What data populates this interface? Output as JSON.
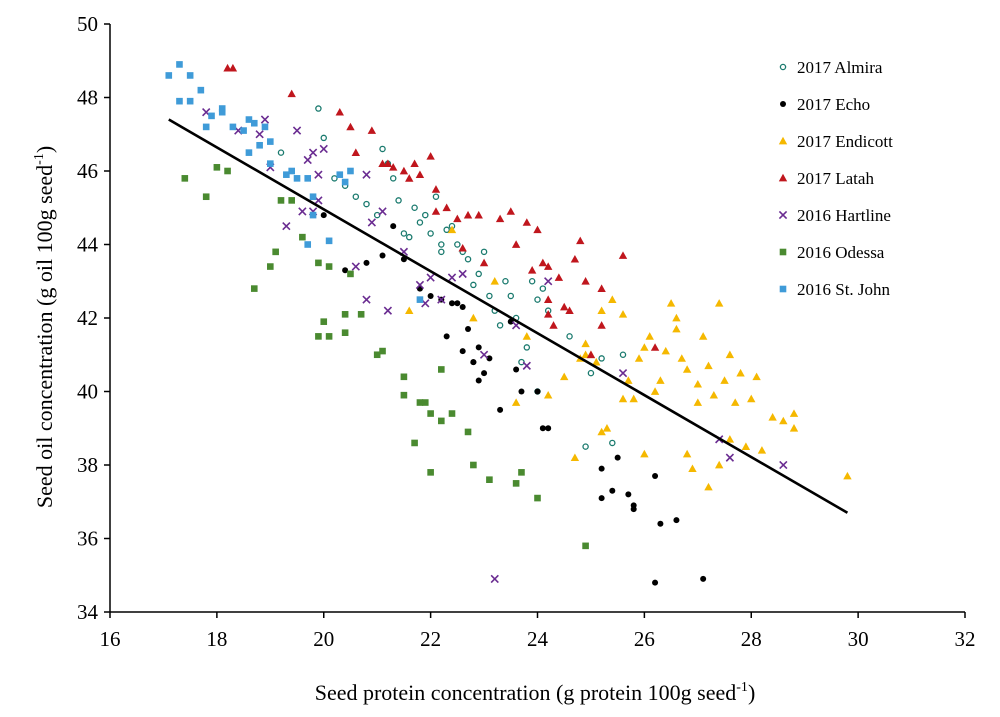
{
  "chart_data": {
    "type": "scatter",
    "xlabel": {
      "main": "Seed protein concentration  (g protein 100g seed",
      "sup": "-1",
      "end": ")"
    },
    "ylabel": {
      "main": "Seed oil concentration  (g oil 100g seed",
      "sup": "-1",
      "end": ")"
    },
    "xlim": [
      16,
      32
    ],
    "ylim": [
      34,
      50
    ],
    "xticks": [
      16,
      18,
      20,
      22,
      24,
      26,
      28,
      30,
      32
    ],
    "yticks": [
      34,
      36,
      38,
      40,
      42,
      44,
      46,
      48,
      50
    ],
    "grid": false,
    "legend_position": "top-right",
    "trendline": {
      "x": [
        17.1,
        29.8
      ],
      "y": [
        47.4,
        36.7
      ],
      "color": "#000000"
    },
    "series": [
      {
        "name": "2017 Almira",
        "marker": "open-circle",
        "color": "#1a7a6e",
        "points": [
          [
            19.2,
            46.5
          ],
          [
            19.9,
            47.7
          ],
          [
            20.0,
            46.9
          ],
          [
            20.2,
            45.8
          ],
          [
            20.4,
            45.6
          ],
          [
            20.6,
            45.3
          ],
          [
            20.8,
            45.1
          ],
          [
            21.0,
            44.8
          ],
          [
            21.1,
            46.6
          ],
          [
            21.2,
            46.2
          ],
          [
            21.3,
            45.8
          ],
          [
            21.4,
            45.2
          ],
          [
            21.6,
            44.2
          ],
          [
            21.7,
            45.0
          ],
          [
            21.8,
            44.6
          ],
          [
            21.9,
            44.8
          ],
          [
            22.0,
            44.3
          ],
          [
            22.1,
            45.3
          ],
          [
            22.2,
            44.0
          ],
          [
            22.3,
            44.4
          ],
          [
            22.4,
            44.5
          ],
          [
            22.5,
            44.0
          ],
          [
            22.6,
            43.8
          ],
          [
            22.7,
            43.6
          ],
          [
            22.9,
            43.2
          ],
          [
            23.0,
            43.8
          ],
          [
            23.1,
            42.6
          ],
          [
            23.2,
            42.2
          ],
          [
            23.3,
            41.8
          ],
          [
            23.5,
            42.6
          ],
          [
            23.6,
            42.0
          ],
          [
            23.7,
            40.8
          ],
          [
            23.8,
            41.2
          ],
          [
            23.9,
            43.0
          ],
          [
            24.0,
            42.5
          ],
          [
            24.1,
            42.8
          ],
          [
            24.2,
            42.2
          ],
          [
            24.0,
            40.0
          ],
          [
            24.6,
            41.5
          ],
          [
            24.9,
            38.5
          ],
          [
            25.0,
            40.5
          ],
          [
            25.2,
            40.9
          ],
          [
            25.4,
            38.6
          ],
          [
            25.6,
            41.0
          ],
          [
            22.2,
            43.8
          ],
          [
            21.5,
            44.3
          ],
          [
            23.4,
            43.0
          ],
          [
            22.8,
            42.9
          ]
        ]
      },
      {
        "name": "2017 Echo",
        "marker": "filled-circle",
        "color": "#000000",
        "points": [
          [
            20.0,
            44.8
          ],
          [
            20.4,
            43.3
          ],
          [
            20.8,
            43.5
          ],
          [
            21.1,
            43.7
          ],
          [
            21.3,
            44.5
          ],
          [
            21.5,
            43.6
          ],
          [
            21.8,
            42.8
          ],
          [
            22.0,
            42.6
          ],
          [
            22.2,
            42.5
          ],
          [
            22.3,
            41.5
          ],
          [
            22.5,
            42.4
          ],
          [
            22.6,
            42.3
          ],
          [
            22.6,
            41.1
          ],
          [
            22.7,
            41.7
          ],
          [
            22.8,
            40.8
          ],
          [
            22.9,
            41.2
          ],
          [
            23.0,
            40.5
          ],
          [
            23.1,
            40.9
          ],
          [
            23.3,
            39.5
          ],
          [
            23.5,
            41.9
          ],
          [
            23.6,
            40.6
          ],
          [
            23.7,
            40.0
          ],
          [
            24.0,
            40.0
          ],
          [
            24.1,
            39.0
          ],
          [
            24.2,
            39.0
          ],
          [
            22.9,
            40.3
          ],
          [
            25.2,
            37.9
          ],
          [
            25.2,
            37.1
          ],
          [
            25.4,
            37.3
          ],
          [
            25.5,
            38.2
          ],
          [
            25.7,
            37.2
          ],
          [
            25.8,
            36.9
          ],
          [
            25.8,
            36.8
          ],
          [
            26.2,
            37.7
          ],
          [
            26.3,
            36.4
          ],
          [
            26.6,
            36.5
          ],
          [
            26.2,
            34.8
          ],
          [
            27.1,
            34.9
          ],
          [
            22.4,
            42.4
          ],
          [
            22.8,
            40.8
          ]
        ]
      },
      {
        "name": "2017 Endicott",
        "marker": "triangle",
        "color": "#f5b800",
        "points": [
          [
            21.6,
            42.2
          ],
          [
            22.4,
            44.4
          ],
          [
            22.8,
            42.0
          ],
          [
            23.2,
            43.0
          ],
          [
            23.6,
            39.7
          ],
          [
            23.8,
            41.5
          ],
          [
            24.2,
            39.9
          ],
          [
            24.5,
            40.4
          ],
          [
            24.7,
            38.2
          ],
          [
            24.8,
            40.9
          ],
          [
            24.9,
            41.3
          ],
          [
            25.0,
            41.0
          ],
          [
            25.1,
            40.8
          ],
          [
            25.2,
            42.2
          ],
          [
            25.3,
            39.0
          ],
          [
            25.4,
            42.5
          ],
          [
            25.6,
            42.1
          ],
          [
            25.7,
            40.3
          ],
          [
            25.8,
            39.8
          ],
          [
            25.9,
            40.9
          ],
          [
            26.0,
            41.2
          ],
          [
            26.0,
            38.3
          ],
          [
            26.1,
            41.5
          ],
          [
            26.2,
            40.0
          ],
          [
            26.3,
            40.3
          ],
          [
            26.4,
            41.1
          ],
          [
            26.5,
            42.4
          ],
          [
            26.6,
            42.0
          ],
          [
            26.7,
            40.9
          ],
          [
            26.8,
            40.6
          ],
          [
            26.9,
            37.9
          ],
          [
            27.0,
            40.2
          ],
          [
            27.1,
            41.5
          ],
          [
            27.2,
            40.7
          ],
          [
            27.3,
            39.9
          ],
          [
            27.4,
            42.4
          ],
          [
            27.5,
            40.3
          ],
          [
            27.6,
            41.0
          ],
          [
            27.7,
            39.7
          ],
          [
            27.8,
            40.5
          ],
          [
            27.9,
            38.5
          ],
          [
            28.0,
            39.8
          ],
          [
            28.1,
            40.4
          ],
          [
            28.2,
            38.4
          ],
          [
            28.4,
            39.3
          ],
          [
            28.6,
            39.2
          ],
          [
            28.8,
            39.4
          ],
          [
            28.8,
            39.0
          ],
          [
            29.8,
            37.7
          ],
          [
            27.2,
            37.4
          ],
          [
            27.4,
            38.0
          ],
          [
            26.8,
            38.3
          ],
          [
            27.0,
            39.7
          ],
          [
            25.6,
            39.8
          ],
          [
            25.2,
            38.9
          ],
          [
            24.9,
            41.0
          ],
          [
            27.6,
            38.7
          ],
          [
            26.6,
            41.7
          ]
        ]
      },
      {
        "name": "2017 Latah",
        "marker": "triangle",
        "color": "#c0161d",
        "points": [
          [
            18.2,
            48.8
          ],
          [
            18.3,
            48.8
          ],
          [
            19.4,
            48.1
          ],
          [
            20.3,
            47.6
          ],
          [
            20.5,
            47.2
          ],
          [
            20.9,
            47.1
          ],
          [
            20.6,
            46.5
          ],
          [
            21.1,
            46.2
          ],
          [
            21.2,
            46.2
          ],
          [
            21.3,
            46.1
          ],
          [
            21.5,
            46.0
          ],
          [
            21.8,
            45.9
          ],
          [
            22.0,
            46.4
          ],
          [
            22.1,
            45.5
          ],
          [
            22.3,
            45.0
          ],
          [
            22.5,
            44.7
          ],
          [
            22.7,
            44.8
          ],
          [
            22.9,
            44.8
          ],
          [
            23.3,
            44.7
          ],
          [
            23.5,
            44.9
          ],
          [
            23.8,
            44.6
          ],
          [
            24.0,
            44.4
          ],
          [
            24.1,
            43.5
          ],
          [
            24.2,
            43.4
          ],
          [
            24.2,
            42.5
          ],
          [
            24.4,
            43.1
          ],
          [
            24.6,
            42.2
          ],
          [
            24.8,
            44.1
          ],
          [
            24.9,
            43.0
          ],
          [
            25.2,
            42.8
          ],
          [
            25.2,
            41.8
          ],
          [
            25.6,
            43.7
          ],
          [
            25.0,
            41.0
          ],
          [
            24.3,
            41.8
          ],
          [
            23.9,
            43.3
          ],
          [
            22.1,
            44.9
          ],
          [
            21.6,
            45.8
          ],
          [
            23.0,
            43.5
          ],
          [
            24.5,
            42.3
          ],
          [
            26.2,
            41.2
          ],
          [
            24.2,
            42.1
          ],
          [
            23.6,
            44.0
          ],
          [
            22.6,
            43.9
          ],
          [
            24.7,
            43.6
          ],
          [
            21.7,
            46.2
          ]
        ]
      },
      {
        "name": "2016 Hartline",
        "marker": "x",
        "color": "#6a2c91",
        "points": [
          [
            17.8,
            47.6
          ],
          [
            18.4,
            47.1
          ],
          [
            18.9,
            47.4
          ],
          [
            19.0,
            46.1
          ],
          [
            19.3,
            44.5
          ],
          [
            19.5,
            47.1
          ],
          [
            19.7,
            46.3
          ],
          [
            19.8,
            46.5
          ],
          [
            19.9,
            45.9
          ],
          [
            20.0,
            46.6
          ],
          [
            19.8,
            44.9
          ],
          [
            19.9,
            45.2
          ],
          [
            20.8,
            45.9
          ],
          [
            20.9,
            44.6
          ],
          [
            21.1,
            44.9
          ],
          [
            21.2,
            42.2
          ],
          [
            20.8,
            42.5
          ],
          [
            21.5,
            43.8
          ],
          [
            21.8,
            42.9
          ],
          [
            22.0,
            43.1
          ],
          [
            22.2,
            42.5
          ],
          [
            22.4,
            43.1
          ],
          [
            22.6,
            43.2
          ],
          [
            23.0,
            41.0
          ],
          [
            23.2,
            34.9
          ],
          [
            23.6,
            41.8
          ],
          [
            23.8,
            40.7
          ],
          [
            24.2,
            43.0
          ],
          [
            25.6,
            40.5
          ],
          [
            27.4,
            38.7
          ],
          [
            27.6,
            38.2
          ],
          [
            28.6,
            38.0
          ],
          [
            19.6,
            44.9
          ],
          [
            18.8,
            47.0
          ],
          [
            20.6,
            43.4
          ],
          [
            21.9,
            42.4
          ]
        ]
      },
      {
        "name": "2016 Odessa",
        "marker": "square",
        "color": "#4a8a30",
        "points": [
          [
            17.4,
            45.8
          ],
          [
            17.8,
            45.3
          ],
          [
            18.0,
            46.1
          ],
          [
            18.2,
            46.0
          ],
          [
            18.7,
            42.8
          ],
          [
            19.0,
            43.4
          ],
          [
            19.1,
            43.8
          ],
          [
            19.2,
            45.2
          ],
          [
            19.4,
            45.2
          ],
          [
            19.6,
            44.2
          ],
          [
            19.9,
            43.5
          ],
          [
            19.9,
            41.5
          ],
          [
            20.0,
            41.9
          ],
          [
            20.1,
            41.5
          ],
          [
            20.4,
            42.1
          ],
          [
            20.4,
            41.6
          ],
          [
            20.5,
            43.2
          ],
          [
            20.7,
            42.1
          ],
          [
            21.1,
            41.1
          ],
          [
            21.5,
            40.4
          ],
          [
            21.5,
            39.9
          ],
          [
            21.7,
            38.6
          ],
          [
            21.8,
            39.7
          ],
          [
            21.9,
            39.7
          ],
          [
            22.0,
            39.4
          ],
          [
            22.0,
            37.8
          ],
          [
            22.2,
            40.6
          ],
          [
            22.2,
            39.2
          ],
          [
            22.4,
            39.4
          ],
          [
            22.7,
            38.9
          ],
          [
            22.8,
            38.0
          ],
          [
            23.1,
            37.6
          ],
          [
            23.6,
            37.5
          ],
          [
            23.7,
            37.8
          ],
          [
            24.0,
            37.1
          ],
          [
            24.9,
            35.8
          ],
          [
            20.1,
            43.4
          ],
          [
            21.0,
            41.0
          ]
        ]
      },
      {
        "name": "2016 St. John",
        "marker": "square",
        "color": "#3f9bd8",
        "points": [
          [
            17.1,
            48.6
          ],
          [
            17.3,
            48.9
          ],
          [
            17.3,
            47.9
          ],
          [
            17.5,
            48.6
          ],
          [
            17.5,
            47.9
          ],
          [
            17.7,
            48.2
          ],
          [
            17.8,
            47.2
          ],
          [
            17.9,
            47.5
          ],
          [
            18.1,
            47.7
          ],
          [
            18.3,
            47.2
          ],
          [
            18.5,
            47.1
          ],
          [
            18.6,
            47.4
          ],
          [
            18.7,
            47.3
          ],
          [
            18.6,
            46.5
          ],
          [
            18.8,
            46.7
          ],
          [
            19.0,
            46.8
          ],
          [
            19.0,
            46.2
          ],
          [
            19.3,
            45.9
          ],
          [
            19.5,
            45.8
          ],
          [
            19.8,
            45.3
          ],
          [
            19.8,
            44.8
          ],
          [
            20.1,
            44.1
          ],
          [
            19.7,
            44.0
          ],
          [
            20.3,
            45.9
          ],
          [
            20.4,
            45.7
          ],
          [
            18.9,
            47.2
          ],
          [
            19.4,
            46.0
          ],
          [
            18.1,
            47.6
          ],
          [
            21.8,
            42.5
          ],
          [
            19.7,
            45.8
          ],
          [
            20.5,
            46.0
          ]
        ]
      }
    ]
  }
}
